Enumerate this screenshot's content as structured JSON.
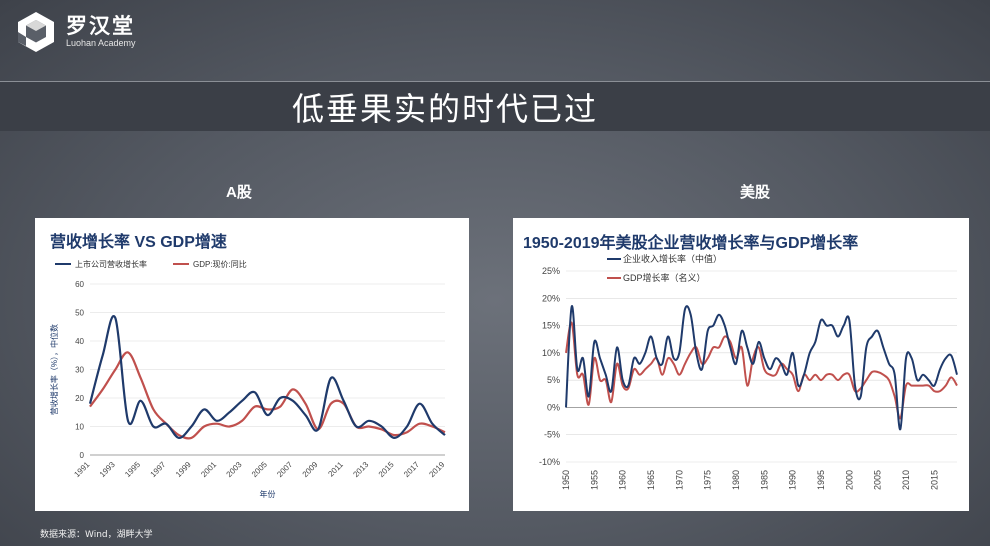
{
  "brand": {
    "name_cn": "罗汉堂",
    "name_en": "Luohan Academy"
  },
  "page_title": "低垂果实的时代已过",
  "panels": {
    "left_label": "A股",
    "right_label": "美股"
  },
  "source": "数据来源：Wind，湖畔大学",
  "chart_data": [
    {
      "type": "line",
      "title": "营收增长率 VS GDP增速",
      "ylabel": "营收增长率（%），中位数",
      "xlabel": "年份",
      "ylim": [
        0,
        60
      ],
      "yticks": [
        "0",
        "10",
        "20",
        "30",
        "40",
        "50",
        "60"
      ],
      "xticks": [
        "1991",
        "1993",
        "1995",
        "1997",
        "1999",
        "2001",
        "2003",
        "2005",
        "2007",
        "2009",
        "2011",
        "2013",
        "2015",
        "2017",
        "2019"
      ],
      "x": [
        1991,
        1992,
        1993,
        1994,
        1995,
        1996,
        1997,
        1998,
        1999,
        2000,
        2001,
        2002,
        2003,
        2004,
        2005,
        2006,
        2007,
        2008,
        2009,
        2010,
        2011,
        2012,
        2013,
        2014,
        2015,
        2016,
        2017,
        2018,
        2019
      ],
      "series": [
        {
          "name": "上市公司营收增长率",
          "color": "#1f3a6b",
          "values": [
            18,
            35,
            48,
            12,
            19,
            10,
            11,
            6,
            10,
            16,
            12,
            15,
            19,
            22,
            14,
            20,
            19,
            14,
            9,
            27,
            19,
            10,
            12,
            10,
            6,
            10,
            18,
            11,
            7
          ]
        },
        {
          "name": "GDP:现价:同比",
          "color": "#c0504d",
          "values": [
            17,
            23,
            30,
            36,
            27,
            16,
            11,
            7,
            6,
            10,
            11,
            10,
            12,
            17,
            16,
            17,
            23,
            18,
            9,
            18,
            18,
            10,
            10,
            9,
            7,
            8,
            11,
            10,
            8
          ]
        }
      ],
      "grid": true,
      "legend": "top"
    },
    {
      "type": "line",
      "title": "1950-2019年美股企业营收增长率与GDP增长率",
      "ylim": [
        -10,
        25
      ],
      "yticks": [
        "-10%",
        "-5%",
        "0%",
        "5%",
        "10%",
        "15%",
        "20%",
        "25%"
      ],
      "xticks": [
        "1950",
        "1955",
        "1960",
        "1965",
        "1970",
        "1975",
        "1980",
        "1985",
        "1990",
        "1995",
        "2000",
        "2005",
        "2010",
        "2015"
      ],
      "x": [
        1950,
        1951,
        1952,
        1953,
        1954,
        1955,
        1956,
        1957,
        1958,
        1959,
        1960,
        1961,
        1962,
        1963,
        1964,
        1965,
        1966,
        1967,
        1968,
        1969,
        1970,
        1971,
        1972,
        1973,
        1974,
        1975,
        1976,
        1977,
        1978,
        1979,
        1980,
        1981,
        1982,
        1983,
        1984,
        1985,
        1986,
        1987,
        1988,
        1989,
        1990,
        1991,
        1992,
        1993,
        1994,
        1995,
        1996,
        1997,
        1998,
        1999,
        2000,
        2001,
        2002,
        2003,
        2004,
        2005,
        2006,
        2007,
        2008,
        2009,
        2010,
        2011,
        2012,
        2013,
        2014,
        2015,
        2016,
        2017,
        2018,
        2019
      ],
      "series": [
        {
          "name": "企业收入增长率（中值）",
          "color": "#1f3a6b",
          "values": [
            0,
            18.5,
            7,
            9,
            2,
            12,
            9,
            6,
            3,
            11,
            5,
            4,
            9,
            8,
            10,
            13,
            9,
            8,
            13,
            9,
            10,
            18,
            17,
            10,
            7,
            14,
            15,
            17,
            15,
            11,
            8,
            14,
            11,
            8,
            12,
            9,
            7,
            9,
            8,
            6,
            10,
            4,
            6,
            10,
            12,
            16,
            15,
            15,
            13,
            15,
            16,
            4,
            2,
            11,
            13,
            14,
            11,
            8,
            6,
            -4,
            9,
            9,
            5,
            6,
            5,
            4,
            7,
            9,
            9.5,
            6
          ]
        },
        {
          "name": "GDP增长率（名义）",
          "color": "#c0504d",
          "values": [
            10,
            15.5,
            6,
            6,
            0.5,
            9,
            5,
            5,
            1,
            8,
            4,
            3.5,
            7,
            6,
            7,
            8,
            9,
            6,
            9,
            8,
            6,
            8,
            10,
            11,
            8,
            9,
            11,
            11,
            13,
            12,
            9,
            11,
            4,
            9,
            11,
            7,
            6,
            6,
            8,
            7,
            6,
            3,
            6,
            5,
            6,
            5,
            6,
            6,
            5,
            6,
            6,
            3,
            3.5,
            5,
            6.5,
            6.5,
            6,
            5,
            2,
            -2,
            4,
            4,
            4,
            4,
            4,
            3,
            3,
            4,
            5.5,
            4
          ]
        }
      ],
      "grid": true,
      "legend": "top-left"
    }
  ]
}
